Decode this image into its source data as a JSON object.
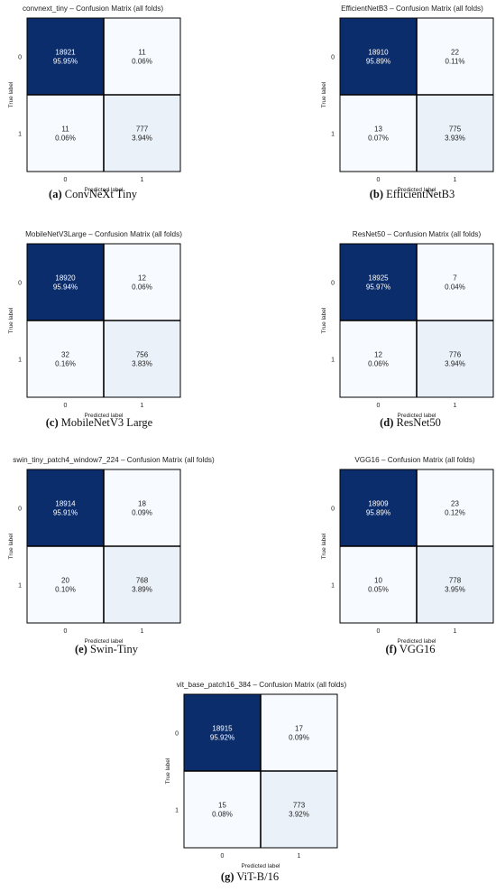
{
  "chart_data": [
    {
      "type": "heatmap",
      "title": "convnext_tiny – Confusion Matrix (all folds)",
      "xlabel": "Predicted label",
      "ylabel": "True label",
      "x_ticks": [
        "0",
        "1"
      ],
      "y_ticks": [
        "0",
        "1"
      ],
      "cells": [
        {
          "count": "18921",
          "pct": "95.95%",
          "value": 95.95
        },
        {
          "count": "11",
          "pct": "0.06%",
          "value": 0.06
        },
        {
          "count": "11",
          "pct": "0.06%",
          "value": 0.06
        },
        {
          "count": "777",
          "pct": "3.94%",
          "value": 3.94
        }
      ],
      "caption_letter": "(a)",
      "caption_text": "ConvNeXt Tiny"
    },
    {
      "type": "heatmap",
      "title": "EfficientNetB3 – Confusion Matrix (all folds)",
      "xlabel": "Predicted label",
      "ylabel": "True label",
      "x_ticks": [
        "0",
        "1"
      ],
      "y_ticks": [
        "0",
        "1"
      ],
      "cells": [
        {
          "count": "18910",
          "pct": "95.89%",
          "value": 95.89
        },
        {
          "count": "22",
          "pct": "0.11%",
          "value": 0.11
        },
        {
          "count": "13",
          "pct": "0.07%",
          "value": 0.07
        },
        {
          "count": "775",
          "pct": "3.93%",
          "value": 3.93
        }
      ],
      "caption_letter": "(b)",
      "caption_text": "EfficientNetB3"
    },
    {
      "type": "heatmap",
      "title": "MobileNetV3Large – Confusion Matrix (all folds)",
      "xlabel": "Predicted label",
      "ylabel": "True label",
      "x_ticks": [
        "0",
        "1"
      ],
      "y_ticks": [
        "0",
        "1"
      ],
      "cells": [
        {
          "count": "18920",
          "pct": "95.94%",
          "value": 95.94
        },
        {
          "count": "12",
          "pct": "0.06%",
          "value": 0.06
        },
        {
          "count": "32",
          "pct": "0.16%",
          "value": 0.16
        },
        {
          "count": "756",
          "pct": "3.83%",
          "value": 3.83
        }
      ],
      "caption_letter": "(c)",
      "caption_text": "MobileNetV3 Large"
    },
    {
      "type": "heatmap",
      "title": "ResNet50 – Confusion Matrix (all folds)",
      "xlabel": "Predicted label",
      "ylabel": "True label",
      "x_ticks": [
        "0",
        "1"
      ],
      "y_ticks": [
        "0",
        "1"
      ],
      "cells": [
        {
          "count": "18925",
          "pct": "95.97%",
          "value": 95.97
        },
        {
          "count": "7",
          "pct": "0.04%",
          "value": 0.04
        },
        {
          "count": "12",
          "pct": "0.06%",
          "value": 0.06
        },
        {
          "count": "776",
          "pct": "3.94%",
          "value": 3.94
        }
      ],
      "caption_letter": "(d)",
      "caption_text": "ResNet50"
    },
    {
      "type": "heatmap",
      "title": "swin_tiny_patch4_window7_224 – Confusion Matrix (all folds)",
      "xlabel": "Predicted label",
      "ylabel": "True label",
      "x_ticks": [
        "0",
        "1"
      ],
      "y_ticks": [
        "0",
        "1"
      ],
      "cells": [
        {
          "count": "18914",
          "pct": "95.91%",
          "value": 95.91
        },
        {
          "count": "18",
          "pct": "0.09%",
          "value": 0.09
        },
        {
          "count": "20",
          "pct": "0.10%",
          "value": 0.1
        },
        {
          "count": "768",
          "pct": "3.89%",
          "value": 3.89
        }
      ],
      "caption_letter": "(e)",
      "caption_text": "Swin-Tiny"
    },
    {
      "type": "heatmap",
      "title": "VGG16 – Confusion Matrix (all folds)",
      "xlabel": "Predicted label",
      "ylabel": "True label",
      "x_ticks": [
        "0",
        "1"
      ],
      "y_ticks": [
        "0",
        "1"
      ],
      "cells": [
        {
          "count": "18909",
          "pct": "95.89%",
          "value": 95.89
        },
        {
          "count": "23",
          "pct": "0.12%",
          "value": 0.12
        },
        {
          "count": "10",
          "pct": "0.05%",
          "value": 0.05
        },
        {
          "count": "778",
          "pct": "3.95%",
          "value": 3.95
        }
      ],
      "caption_letter": "(f)",
      "caption_text": "VGG16"
    },
    {
      "type": "heatmap",
      "title": "vit_base_patch16_384 – Confusion Matrix (all folds)",
      "xlabel": "Predicted label",
      "ylabel": "True label",
      "x_ticks": [
        "0",
        "1"
      ],
      "y_ticks": [
        "0",
        "1"
      ],
      "cells": [
        {
          "count": "18915",
          "pct": "95.92%",
          "value": 95.92
        },
        {
          "count": "17",
          "pct": "0.09%",
          "value": 0.09
        },
        {
          "count": "15",
          "pct": "0.08%",
          "value": 0.08
        },
        {
          "count": "773",
          "pct": "3.92%",
          "value": 3.92
        }
      ],
      "caption_letter": "(g)",
      "caption_text": "ViT-B/16"
    }
  ],
  "colors": {
    "high": "#0c2d6b",
    "low": "#f7fbff",
    "mid_tint": "#eaf1f9",
    "grid": "#000000",
    "text_dark": "#222222",
    "text_light": "#ffffff"
  }
}
